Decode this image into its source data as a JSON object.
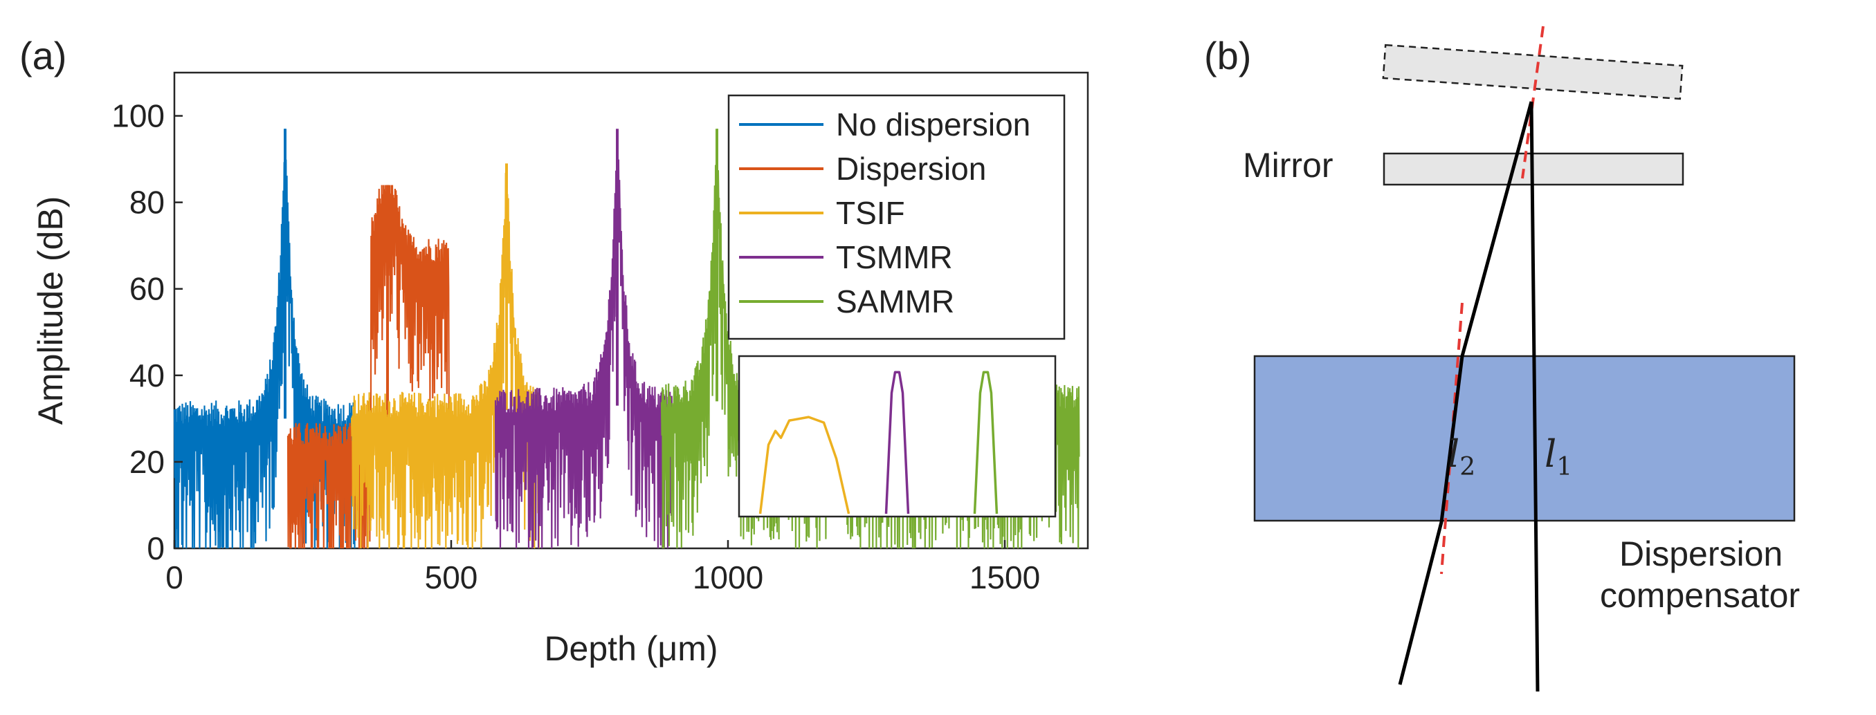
{
  "panel_a": {
    "label": "(a)",
    "chart_data": {
      "type": "line",
      "title": "",
      "xlabel": "Depth (μm)",
      "ylabel": "Amplitude (dB)",
      "xlim": [
        0,
        1650
      ],
      "ylim": [
        0,
        110
      ],
      "xticks": [
        0,
        500,
        1000,
        1500
      ],
      "yticks": [
        0,
        20,
        40,
        60,
        80,
        100
      ],
      "legend_position": "top-right",
      "series": [
        {
          "name": "No dispersion",
          "color": "#0072BD",
          "peak_depth": 200,
          "peak_db": 97,
          "range": [
            0,
            330
          ],
          "noise_floor_db": 30
        },
        {
          "name": "Dispersion",
          "color": "#D95319",
          "peak_depth": 385,
          "peak_db": 84,
          "shoulder_depth": 470,
          "shoulder_db": 68,
          "range": [
            205,
            500
          ],
          "noise_floor_db": 25
        },
        {
          "name": "TSIF",
          "color": "#EDB120",
          "peak_depth": 600,
          "peak_db": 89,
          "range": [
            320,
            660
          ],
          "noise_floor_db": 32
        },
        {
          "name": "TSMMR",
          "color": "#7E2F8E",
          "peak_depth": 800,
          "peak_db": 97,
          "range": [
            580,
            900
          ],
          "noise_floor_db": 33
        },
        {
          "name": "SAMMR",
          "color": "#77AC30",
          "peak_depth": 980,
          "peak_db": 97,
          "range": [
            880,
            1635
          ],
          "noise_floor_db": 34
        }
      ],
      "inset": {
        "content": "zoomed peak shapes",
        "series": [
          {
            "name": "TSIF",
            "shape": "broad",
            "center": 0.22,
            "height": 0.62
          },
          {
            "name": "TSMMR",
            "shape": "narrow",
            "center": 0.5,
            "height": 0.9
          },
          {
            "name": "SAMMR",
            "shape": "narrow",
            "center": 0.78,
            "height": 0.9
          }
        ]
      }
    }
  },
  "panel_b": {
    "label": "(b)",
    "mirror_label": "Mirror",
    "compensator_label_line1": "Dispersion",
    "compensator_label_line2": "compensator",
    "l2_symbol": "l",
    "l2_sub": "2",
    "l1_symbol": "l",
    "l1_sub": "1",
    "colors": {
      "compensator_fill": "#8EA9DB",
      "mirror_fill": "#E6E6E6",
      "beam": "#000000",
      "normal_line": "#E53935"
    }
  }
}
